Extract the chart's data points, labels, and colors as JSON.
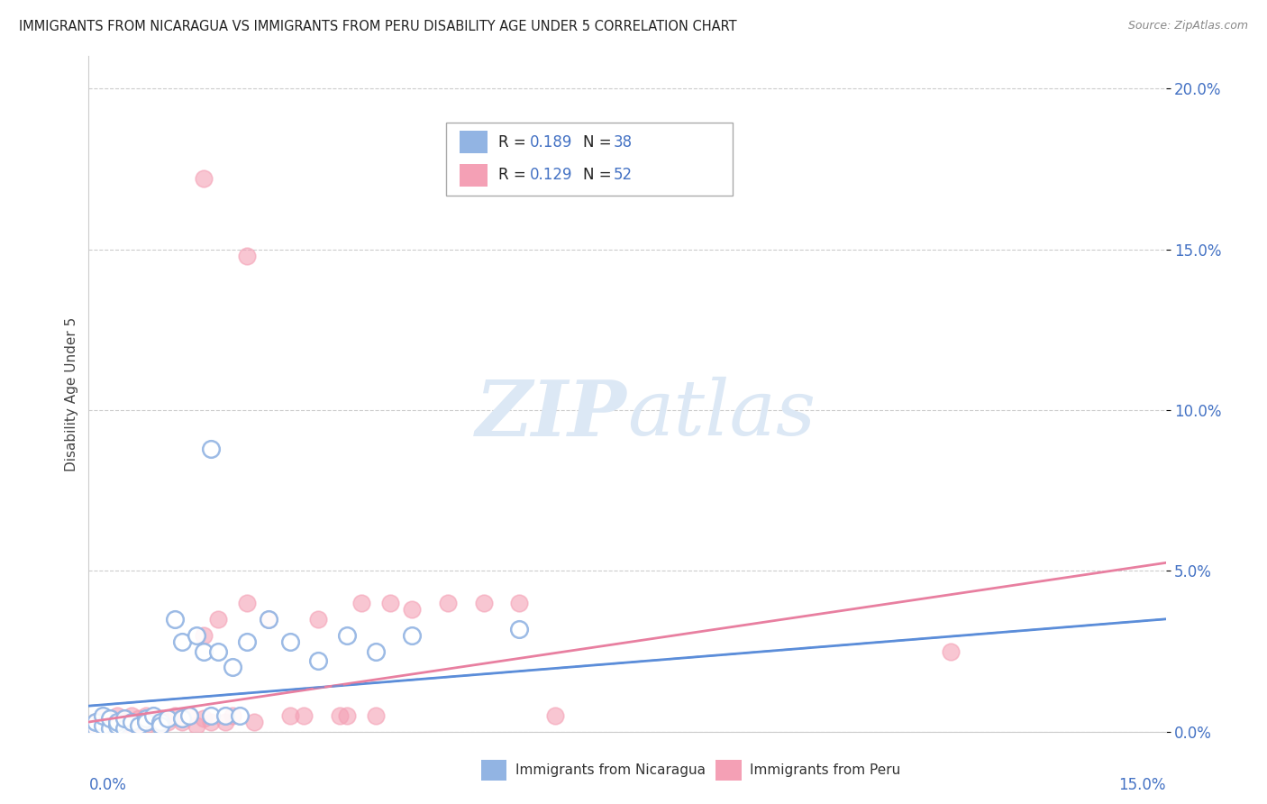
{
  "title": "IMMIGRANTS FROM NICARAGUA VS IMMIGRANTS FROM PERU DISABILITY AGE UNDER 5 CORRELATION CHART",
  "source": "Source: ZipAtlas.com",
  "ylabel": "Disability Age Under 5",
  "xlim": [
    0.0,
    0.15
  ],
  "ylim": [
    0.0,
    0.21
  ],
  "ytick_values": [
    0.0,
    0.05,
    0.1,
    0.15,
    0.2
  ],
  "legend_label1": "Immigrants from Nicaragua",
  "legend_label2": "Immigrants from Peru",
  "color_nicaragua": "#92b4e3",
  "color_peru": "#f4a0b5",
  "color_nic_line": "#5b8dd9",
  "color_peru_line": "#e87fa0",
  "color_blue_text": "#4472c4",
  "axis_color": "#cccccc",
  "grid_color": "#cccccc",
  "watermark_color": "#dce8f5",
  "nic_reg_intercept": 0.008,
  "nic_reg_slope": 0.18,
  "peru_reg_intercept": 0.003,
  "peru_reg_slope": 0.33,
  "nic_x": [
    0.001,
    0.001,
    0.002,
    0.002,
    0.003,
    0.003,
    0.004,
    0.004,
    0.005,
    0.005,
    0.006,
    0.007,
    0.008,
    0.008,
    0.009,
    0.01,
    0.01,
    0.011,
    0.012,
    0.013,
    0.013,
    0.014,
    0.015,
    0.016,
    0.017,
    0.018,
    0.019,
    0.02,
    0.021,
    0.022,
    0.025,
    0.028,
    0.032,
    0.036,
    0.04,
    0.045,
    0.017,
    0.06
  ],
  "nic_y": [
    0.001,
    0.003,
    0.002,
    0.005,
    0.001,
    0.004,
    0.002,
    0.003,
    0.001,
    0.004,
    0.003,
    0.002,
    0.004,
    0.003,
    0.005,
    0.003,
    0.002,
    0.004,
    0.035,
    0.028,
    0.004,
    0.005,
    0.03,
    0.025,
    0.005,
    0.025,
    0.005,
    0.02,
    0.005,
    0.028,
    0.035,
    0.028,
    0.022,
    0.03,
    0.025,
    0.03,
    0.088,
    0.032
  ],
  "peru_x": [
    0.001,
    0.001,
    0.002,
    0.002,
    0.003,
    0.003,
    0.004,
    0.004,
    0.005,
    0.005,
    0.005,
    0.006,
    0.006,
    0.007,
    0.007,
    0.008,
    0.008,
    0.009,
    0.009,
    0.01,
    0.01,
    0.011,
    0.012,
    0.013,
    0.013,
    0.014,
    0.015,
    0.016,
    0.016,
    0.017,
    0.018,
    0.019,
    0.02,
    0.022,
    0.023,
    0.025,
    0.028,
    0.03,
    0.032,
    0.035,
    0.036,
    0.038,
    0.04,
    0.042,
    0.045,
    0.05,
    0.055,
    0.06,
    0.065,
    0.12,
    0.016,
    0.022
  ],
  "peru_y": [
    0.001,
    0.003,
    0.002,
    0.004,
    0.001,
    0.003,
    0.002,
    0.005,
    0.001,
    0.003,
    0.004,
    0.002,
    0.005,
    0.003,
    0.004,
    0.002,
    0.005,
    0.003,
    0.004,
    0.002,
    0.004,
    0.003,
    0.005,
    0.003,
    0.004,
    0.005,
    0.002,
    0.004,
    0.03,
    0.003,
    0.035,
    0.003,
    0.005,
    0.04,
    0.003,
    0.035,
    0.005,
    0.005,
    0.035,
    0.005,
    0.005,
    0.04,
    0.005,
    0.04,
    0.038,
    0.04,
    0.04,
    0.04,
    0.005,
    0.025,
    0.172,
    0.148
  ]
}
